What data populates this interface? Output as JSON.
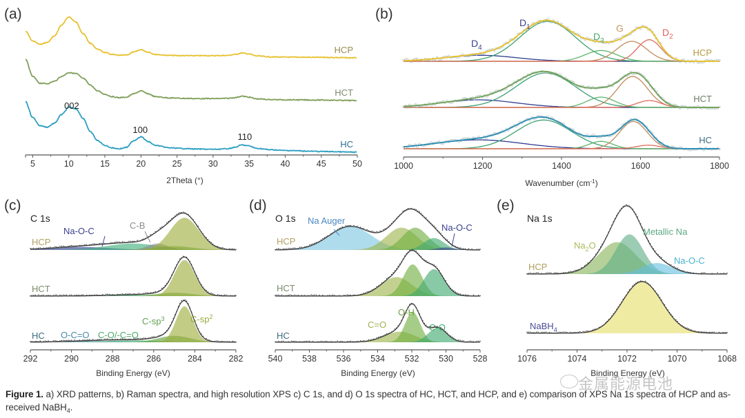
{
  "figure": {
    "caption_bold": "Figure 1.",
    "caption_text": " a) XRD patterns, b) Raman spectra, and high resolution XPS c) C 1s, and d) O 1s spectra of HC, HCT, and HCP, and e) comparison of XPS Na 1s spectra of HCP and as-received NaBH",
    "caption_sub": "4",
    "caption_end": ".",
    "watermark": "金属能源电池"
  },
  "chart_data": [
    {
      "id": "a",
      "panel_label": "(a)",
      "type": "line",
      "title": "XRD patterns",
      "xlabel": "2Theta (°)",
      "ylabel": "",
      "xlim": [
        4,
        50
      ],
      "xticks": [
        5,
        10,
        15,
        20,
        25,
        30,
        35,
        40,
        45,
        50
      ],
      "grid": false,
      "series": [
        {
          "name": "HCP",
          "color": "#e6c12f",
          "label_color": "#9a8a50",
          "x": [
            4,
            5,
            6,
            7,
            8,
            9,
            10,
            11,
            12,
            13,
            14,
            15,
            16,
            17,
            18,
            19,
            20,
            21,
            22,
            24,
            26,
            28,
            30,
            32,
            33,
            34,
            35,
            36,
            38,
            40,
            45,
            50
          ],
          "y": [
            0.55,
            0.35,
            0.28,
            0.32,
            0.45,
            0.68,
            0.85,
            0.74,
            0.5,
            0.3,
            0.18,
            0.11,
            0.07,
            0.05,
            0.06,
            0.12,
            0.17,
            0.12,
            0.07,
            0.05,
            0.045,
            0.045,
            0.045,
            0.05,
            0.07,
            0.1,
            0.08,
            0.04,
            0.02,
            0.015,
            0.01,
            0.0
          ]
        },
        {
          "name": "HCT",
          "color": "#7f9f5a",
          "label_color": "#7c8a6c",
          "x": [
            4,
            5,
            6,
            7,
            8,
            9,
            10,
            11,
            12,
            13,
            14,
            15,
            16,
            17,
            18,
            19,
            20,
            21,
            22,
            24,
            26,
            28,
            30,
            32,
            33,
            34,
            35,
            36,
            38,
            40,
            45,
            50
          ],
          "y": [
            0.85,
            0.5,
            0.36,
            0.35,
            0.4,
            0.5,
            0.58,
            0.56,
            0.46,
            0.32,
            0.2,
            0.13,
            0.08,
            0.06,
            0.07,
            0.14,
            0.2,
            0.14,
            0.08,
            0.055,
            0.045,
            0.04,
            0.04,
            0.045,
            0.06,
            0.09,
            0.07,
            0.035,
            0.02,
            0.015,
            0.01,
            0.0
          ]
        },
        {
          "name": "HC",
          "color": "#2b9ec1",
          "label_color": "#2e6f8c",
          "x": [
            4,
            5,
            6,
            7,
            8,
            9,
            10,
            11,
            12,
            13,
            14,
            15,
            16,
            17,
            18,
            19,
            20,
            21,
            22,
            24,
            26,
            28,
            30,
            32,
            33,
            34,
            35,
            36,
            38,
            40,
            45,
            50
          ],
          "y": [
            1.05,
            0.72,
            0.55,
            0.52,
            0.6,
            0.78,
            0.93,
            0.9,
            0.7,
            0.42,
            0.24,
            0.14,
            0.09,
            0.07,
            0.1,
            0.24,
            0.32,
            0.22,
            0.14,
            0.09,
            0.075,
            0.065,
            0.06,
            0.07,
            0.1,
            0.15,
            0.13,
            0.08,
            0.05,
            0.035,
            0.015,
            0.0
          ]
        }
      ],
      "annotations": [
        {
          "text": "002",
          "x": 10.4
        },
        {
          "text": "100",
          "x": 19.9
        },
        {
          "text": "110",
          "x": 34.4
        }
      ]
    },
    {
      "id": "b",
      "panel_label": "(b)",
      "type": "line",
      "title": "Raman spectra",
      "xlabel": "Wavenumber (cm⁻¹)",
      "xlabel_main": "Wavenumber (cm",
      "xlabel_sup": "-1",
      "xlabel_end": ")",
      "xlim": [
        1000,
        1800
      ],
      "xticks": [
        1000,
        1200,
        1400,
        1600,
        1800
      ],
      "grid": false,
      "band_labels": [
        {
          "text": "D",
          "sub": "4",
          "color": "#3a3f8f",
          "x": 1180
        },
        {
          "text": "D",
          "sub": "1",
          "color": "#3a3f8f",
          "x": 1290
        },
        {
          "text": "D",
          "sub": "3",
          "color": "#4aa86a",
          "x": 1480
        },
        {
          "text": "G",
          "sub": "",
          "color": "#c49a63",
          "x": 1552
        },
        {
          "text": "D",
          "sub": "2",
          "color": "#e06060",
          "x": 1640
        }
      ],
      "component_colors": {
        "D4": "#2c3b8f",
        "D1": "#3aa070",
        "D3": "#5db56a",
        "G": "#c08a5a",
        "D2": "#e06a5a",
        "baseline": "#f07050"
      },
      "samples": [
        {
          "name": "HCP",
          "fit_color": "#e6c12f",
          "label_color": "#b69a40",
          "peaks": {
            "D4": [
              1195,
              0.15,
              90
            ],
            "D1": [
              1365,
              1.0,
              70
            ],
            "D3": [
              1500,
              0.27,
              40
            ],
            "G": [
              1578,
              0.5,
              38
            ],
            "D2": [
              1622,
              0.54,
              30
            ]
          }
        },
        {
          "name": "HCT",
          "fit_color": "#6fa35a",
          "label_color": "#6c7d63",
          "peaks": {
            "D4": [
              1190,
              0.22,
              95
            ],
            "D1": [
              1360,
              1.0,
              75
            ],
            "D3": [
              1500,
              0.3,
              35
            ],
            "G": [
              1580,
              0.9,
              38
            ],
            "D2": [
              1622,
              0.2,
              30
            ]
          }
        },
        {
          "name": "HC",
          "fit_color": "#2d8fb5",
          "label_color": "#3d6a7e",
          "peaks": {
            "D4": [
              1190,
              0.3,
              110
            ],
            "D1": [
              1355,
              0.97,
              70
            ],
            "D3": [
              1500,
              0.25,
              30
            ],
            "G": [
              1582,
              0.92,
              35
            ],
            "D2": [
              1620,
              0.12,
              30
            ]
          }
        }
      ]
    },
    {
      "id": "c",
      "panel_label": "(c)",
      "type": "area",
      "title": "C 1s",
      "xlabel": "Binding Energy (eV)",
      "xlim": [
        292,
        282
      ],
      "xticks": [
        292,
        290,
        288,
        286,
        284,
        282
      ],
      "grid": false,
      "samples": [
        {
          "name": "HCP",
          "label_color": "#b0a060",
          "components": [
            {
              "name": "Na-O-C",
              "center": 289.5,
              "height": 0.08,
              "width": 1.4,
              "color": "#2c3b8f"
            },
            {
              "name": "C-O/-C=O",
              "center": 287.0,
              "height": 0.17,
              "width": 1.3,
              "color": "#3fb07a"
            },
            {
              "name": "C-B",
              "center": 285.8,
              "height": 0.17,
              "width": 0.5,
              "color": "#8a8a8a"
            },
            {
              "name": "C-sp3",
              "center": 285.0,
              "height": 0.1,
              "width": 0.9,
              "color": "#5f9f3a"
            },
            {
              "name": "C-sp2",
              "center": 284.5,
              "height": 0.85,
              "width": 0.7,
              "color": "#9cac3a"
            }
          ]
        },
        {
          "name": "HCT",
          "label_color": "#7c8a6c",
          "components": [
            {
              "name": "C-O/-C=O",
              "center": 287.0,
              "height": 0.03,
              "width": 1.3,
              "color": "#3fb07a"
            },
            {
              "name": "C-sp3",
              "center": 285.0,
              "height": 0.09,
              "width": 0.9,
              "color": "#5f9f3a"
            },
            {
              "name": "C-sp2",
              "center": 284.5,
              "height": 0.95,
              "width": 0.5,
              "color": "#9cac3a"
            }
          ]
        },
        {
          "name": "HC",
          "label_color": "#3d6a7e",
          "components": [
            {
              "name": "O-C=O",
              "center": 289.0,
              "height": 0.03,
              "width": 1.3,
              "color": "#3a7aa0"
            },
            {
              "name": "C-O/-C=O",
              "center": 287.0,
              "height": 0.05,
              "width": 1.3,
              "color": "#3fb07a"
            },
            {
              "name": "C-sp3",
              "center": 285.0,
              "height": 0.17,
              "width": 0.8,
              "color": "#5f9f3a"
            },
            {
              "name": "C-sp2",
              "center": 284.5,
              "height": 0.95,
              "width": 0.42,
              "color": "#9cac3a"
            }
          ]
        }
      ],
      "annotations": [
        {
          "text": "Na-O-C",
          "color": "#3a3f8f"
        },
        {
          "text": "C-B",
          "color": "#8a8a8a"
        },
        {
          "text": "O-C=O",
          "color": "#4a88a8"
        },
        {
          "text": "C-O/-C=O",
          "color": "#4aa86a"
        },
        {
          "text": "C-sp",
          "sup": "3",
          "color": "#5fa050"
        },
        {
          "text": "C-sp",
          "sup": "2",
          "color": "#9aaa3a"
        }
      ]
    },
    {
      "id": "d",
      "panel_label": "(d)",
      "type": "area",
      "title": "O 1s",
      "xlabel": "Binding Energy (eV)",
      "xlim": [
        540,
        528
      ],
      "xticks": [
        540,
        538,
        536,
        534,
        532,
        530,
        528
      ],
      "grid": false,
      "samples": [
        {
          "name": "HCP",
          "label_color": "#b0a060",
          "components": [
            {
              "name": "Na Auger",
              "center": 535.6,
              "height": 0.95,
              "width": 1.25,
              "color": "#7cc6e0"
            },
            {
              "name": "C=O",
              "center": 532.6,
              "height": 0.9,
              "width": 0.9,
              "color": "#9cb44a"
            },
            {
              "name": "O-H",
              "center": 531.8,
              "height": 0.9,
              "width": 0.75,
              "color": "#6fae3f"
            },
            {
              "name": "C-O",
              "center": 530.7,
              "height": 0.48,
              "width": 0.6,
              "color": "#3faa70"
            },
            {
              "name": "Na-O-C",
              "center": 530.0,
              "height": 0.1,
              "width": 0.5,
              "color": "#3a3f8f"
            }
          ]
        },
        {
          "name": "HCT",
          "label_color": "#7c8a6c",
          "components": [
            {
              "name": "C=O",
              "center": 532.9,
              "height": 0.6,
              "width": 0.9,
              "color": "#9cb44a"
            },
            {
              "name": "O-H",
              "center": 531.95,
              "height": 1.0,
              "width": 0.55,
              "color": "#6fae3f"
            },
            {
              "name": "C-O",
              "center": 530.7,
              "height": 0.85,
              "width": 0.6,
              "color": "#3faa70"
            }
          ]
        },
        {
          "name": "HC",
          "label_color": "#3d6a7e",
          "components": [
            {
              "name": "C=O",
              "center": 532.7,
              "height": 0.35,
              "width": 0.9,
              "color": "#9cb44a"
            },
            {
              "name": "O-H",
              "center": 531.95,
              "height": 1.0,
              "width": 0.45,
              "color": "#6fae3f"
            },
            {
              "name": "C-O",
              "center": 530.5,
              "height": 0.47,
              "width": 0.55,
              "color": "#3faa70"
            }
          ]
        }
      ],
      "annotations": [
        {
          "text": "Na Auger",
          "color": "#4a88c0"
        },
        {
          "text": "Na-O-C",
          "color": "#3a3f8f"
        },
        {
          "text": "C=O",
          "color": "#a0b050"
        },
        {
          "text": "O-H",
          "color": "#6aa040"
        },
        {
          "text": "C-O",
          "color": "#3faa70"
        }
      ]
    },
    {
      "id": "e",
      "panel_label": "(e)",
      "type": "area",
      "title": "Na 1s",
      "xlabel": "Binding Energy (eV)",
      "xlim": [
        1076,
        1068
      ],
      "xticks": [
        1076,
        1074,
        1072,
        1070,
        1068
      ],
      "grid": false,
      "samples": [
        {
          "name": "HCP",
          "label_color": "#b0a060",
          "components": [
            {
              "name": "Na",
              "sub": "2",
              "name_end": "O",
              "center": 1072.4,
              "height": 0.58,
              "width": 0.75,
              "color": "#88b45a"
            },
            {
              "name": "Metallic Na",
              "center": 1071.9,
              "height": 0.72,
              "width": 0.55,
              "color": "#5fae86"
            },
            {
              "name": "Na-O-C",
              "center": 1070.8,
              "height": 0.2,
              "width": 0.6,
              "color": "#68c0e0"
            }
          ]
        },
        {
          "name": "NaBH4",
          "label_main": "NaBH",
          "label_sub": "4",
          "label_color": "#4a4a9a",
          "components": [
            {
              "name": "NaBH4",
              "center": 1071.4,
              "height": 1.0,
              "width": 0.8,
              "color": "#e6df6a"
            }
          ]
        }
      ],
      "annotations": [
        {
          "text": "Na",
          "sub": "2",
          "end": "O",
          "color": "#a8bc5a"
        },
        {
          "text": "Metallic Na",
          "color": "#5aa880"
        },
        {
          "text": "Na-O-C",
          "color": "#4ab0d0"
        }
      ]
    }
  ]
}
